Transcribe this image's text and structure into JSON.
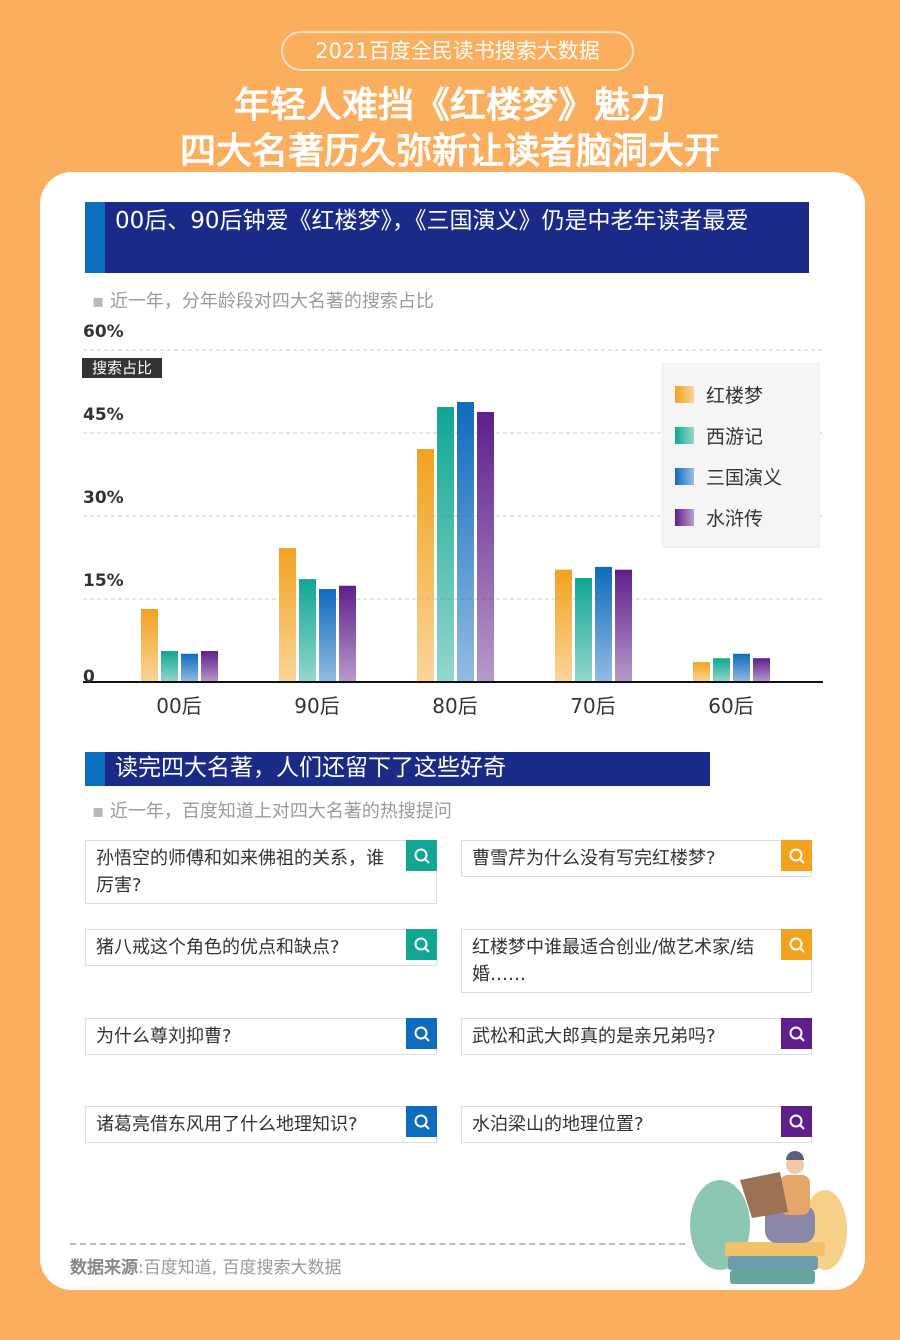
{
  "header": {
    "pill": "2021百度全民读书搜索大数据",
    "title_line1": "年轻人难挡《红楼梦》魅力",
    "title_line2": "四大名著历久弥新让读者脑洞大开"
  },
  "section1": {
    "heading": "00后、90后钟爱《红楼梦》，《三国演义》仍是中老年读者最爱",
    "subtitle": "近一年，分年龄段对四大名著的搜索占比"
  },
  "chart_data": {
    "type": "bar",
    "ylabel": "搜索占比",
    "categories": [
      "00后",
      "90后",
      "80后",
      "70后",
      "60后"
    ],
    "ylim": [
      0,
      60
    ],
    "yticks": [
      "0",
      "15%",
      "30%",
      "45%",
      "60%"
    ],
    "ytick_values": [
      0,
      15,
      30,
      45,
      60
    ],
    "grid": true,
    "legend": "top-right",
    "series": [
      {
        "name": "红楼梦",
        "color": "#f3a21f",
        "values": [
          13.2,
          24.2,
          42.1,
          20.3,
          3.6
        ]
      },
      {
        "name": "西游记",
        "color": "#10a693",
        "values": [
          5.6,
          18.6,
          49.7,
          18.8,
          4.3
        ]
      },
      {
        "name": "三国演义",
        "color": "#0e6bbd",
        "values": [
          5.1,
          16.8,
          50.6,
          20.8,
          5.1
        ]
      },
      {
        "name": "水浒传",
        "color": "#5e1f8a",
        "values": [
          5.6,
          17.4,
          48.8,
          20.3,
          4.3
        ]
      }
    ]
  },
  "section2": {
    "heading": "读完四大名著，人们还留下了这些好奇",
    "subtitle": "近一年，百度知道上对四大名著的热搜提问",
    "questions": [
      {
        "text": "孙悟空的师傅和如来佛祖的关系，谁厉害?",
        "color": "#10a693",
        "icon": "search-icon"
      },
      {
        "text": "曹雪芹为什么没有写完红楼梦?",
        "color": "#f3a21f",
        "icon": "search-icon"
      },
      {
        "text": "猪八戒这个角色的优点和缺点?",
        "color": "#10a693",
        "icon": "search-icon"
      },
      {
        "text": "红楼梦中谁最适合创业/做艺术家/结婚……",
        "color": "#f3a21f",
        "icon": "search-icon"
      },
      {
        "text": "为什么尊刘抑曹?",
        "color": "#0e6bbd",
        "icon": "search-icon"
      },
      {
        "text": "武松和武大郎真的是亲兄弟吗?",
        "color": "#5e1f8a",
        "icon": "search-icon"
      },
      {
        "text": "诸葛亮借东风用了什么地理知识?",
        "color": "#0e6bbd",
        "icon": "search-icon"
      },
      {
        "text": "水泊梁山的地理位置?",
        "color": "#5e1f8a",
        "icon": "search-icon"
      }
    ]
  },
  "footer": {
    "label": "数据来源",
    "source": ":百度知道, 百度搜索大数据"
  }
}
